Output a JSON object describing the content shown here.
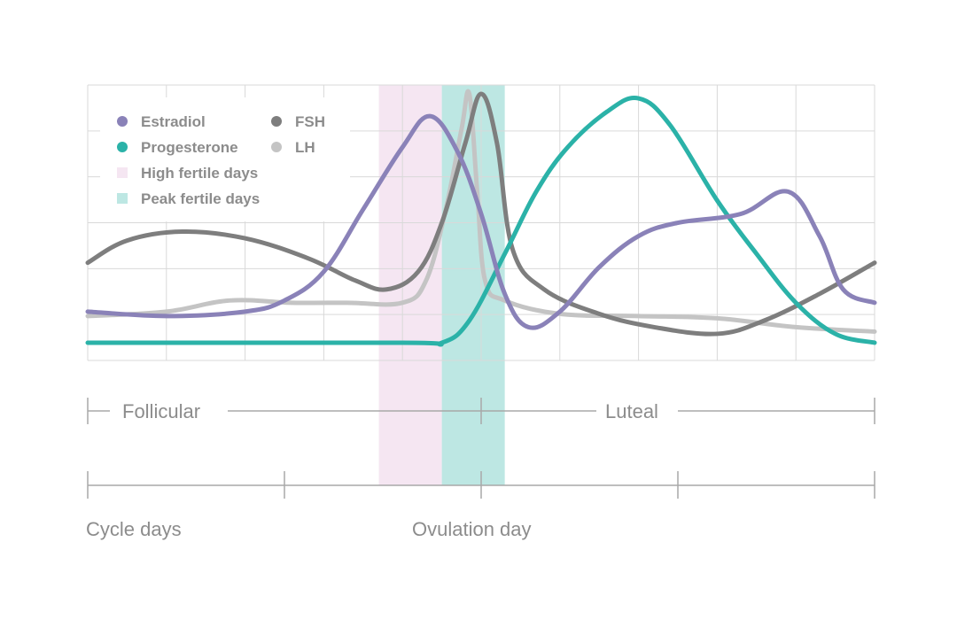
{
  "colors": {
    "estradiol": "#8a82b8",
    "progesterone": "#2bb2a8",
    "fsh": "#7e7e7e",
    "lh": "#c4c4c4",
    "high_fertile": "#f5e6f2",
    "peak_fertile": "#bde7e3",
    "grid": "#d9d9d9",
    "axis": "#a8a8a8",
    "text": "#8c8c8c"
  },
  "chart_data": {
    "type": "line",
    "x": [
      0,
      1,
      2,
      3,
      4,
      5,
      6,
      7,
      8,
      9,
      10
    ],
    "xlim": [
      0,
      10
    ],
    "ylim": [
      0,
      6
    ],
    "grid": true,
    "legend_position": "top-left",
    "series": [
      {
        "key": "estradiol",
        "name": "Estradiol",
        "points": [
          [
            0,
            0.9
          ],
          [
            1,
            0.8
          ],
          [
            2,
            0.9
          ],
          [
            2.5,
            1.15
          ],
          [
            3,
            1.8
          ],
          [
            3.5,
            3.2
          ],
          [
            4,
            4.6
          ],
          [
            4.35,
            5.3
          ],
          [
            4.7,
            4.5
          ],
          [
            5,
            3.1
          ],
          [
            5.3,
            1.3
          ],
          [
            5.6,
            0.55
          ],
          [
            6,
            0.9
          ],
          [
            6.5,
            1.9
          ],
          [
            7,
            2.6
          ],
          [
            7.5,
            2.9
          ],
          [
            8.3,
            3.1
          ],
          [
            8.9,
            3.6
          ],
          [
            9.3,
            2.6
          ],
          [
            9.6,
            1.4
          ],
          [
            10,
            1.1
          ]
        ]
      },
      {
        "key": "progesterone",
        "name": "Progesterone",
        "points": [
          [
            0,
            0.2
          ],
          [
            4,
            0.2
          ],
          [
            4.5,
            0.2
          ],
          [
            4.85,
            0.7
          ],
          [
            5.3,
            2.2
          ],
          [
            5.7,
            3.6
          ],
          [
            6.1,
            4.6
          ],
          [
            6.6,
            5.4
          ],
          [
            7,
            5.7
          ],
          [
            7.4,
            5.1
          ],
          [
            8,
            3.4
          ],
          [
            8.5,
            2.2
          ],
          [
            9,
            1.1
          ],
          [
            9.5,
            0.4
          ],
          [
            10,
            0.2
          ]
        ]
      },
      {
        "key": "fsh",
        "name": "FSH",
        "points": [
          [
            0,
            2
          ],
          [
            0.5,
            2.5
          ],
          [
            1.2,
            2.7
          ],
          [
            2,
            2.55
          ],
          [
            2.8,
            2.1
          ],
          [
            3.4,
            1.6
          ],
          [
            3.8,
            1.4
          ],
          [
            4.2,
            1.8
          ],
          [
            4.5,
            2.9
          ],
          [
            4.8,
            4.7
          ],
          [
            5,
            5.8
          ],
          [
            5.2,
            4.7
          ],
          [
            5.4,
            2.3
          ],
          [
            5.8,
            1.4
          ],
          [
            6.5,
            0.85
          ],
          [
            7.2,
            0.55
          ],
          [
            8,
            0.4
          ],
          [
            8.6,
            0.7
          ],
          [
            9.3,
            1.3
          ],
          [
            10,
            2
          ]
        ]
      },
      {
        "key": "lh",
        "name": "LH",
        "points": [
          [
            0,
            0.8
          ],
          [
            1,
            0.9
          ],
          [
            1.8,
            1.15
          ],
          [
            2.6,
            1.1
          ],
          [
            3.3,
            1.1
          ],
          [
            4,
            1.1
          ],
          [
            4.3,
            1.6
          ],
          [
            4.55,
            3.2
          ],
          [
            4.75,
            5.0
          ],
          [
            4.85,
            5.8
          ],
          [
            4.95,
            3.6
          ],
          [
            5.05,
            1.6
          ],
          [
            5.3,
            1.15
          ],
          [
            6,
            0.85
          ],
          [
            7,
            0.8
          ],
          [
            8,
            0.75
          ],
          [
            9,
            0.55
          ],
          [
            10,
            0.45
          ]
        ]
      }
    ],
    "bands": [
      {
        "key": "high_fertile",
        "name": "High fertile days",
        "from": 3.7,
        "to": 4.5
      },
      {
        "key": "peak_fertile",
        "name": "Peak fertile days",
        "from": 4.5,
        "to": 5.3
      }
    ],
    "phases": [
      {
        "label": "Follicular",
        "from": 0,
        "to": 5
      },
      {
        "label": "Luteal",
        "from": 5,
        "to": 10
      }
    ],
    "day_ticks": [
      0,
      2.5,
      5,
      7.5,
      10
    ],
    "xlabel": "Cycle days",
    "ovulation_label": "Ovulation day",
    "ovulation_x": 5
  },
  "legend": {
    "estradiol": "Estradiol",
    "fsh": "FSH",
    "progesterone": "Progesterone",
    "lh": "LH",
    "high_fertile": "High fertile days",
    "peak_fertile": "Peak fertile days"
  },
  "labels": {
    "follicular": "Follicular",
    "luteal": "Luteal",
    "cycle_days": "Cycle days",
    "ovulation_day": "Ovulation day"
  }
}
